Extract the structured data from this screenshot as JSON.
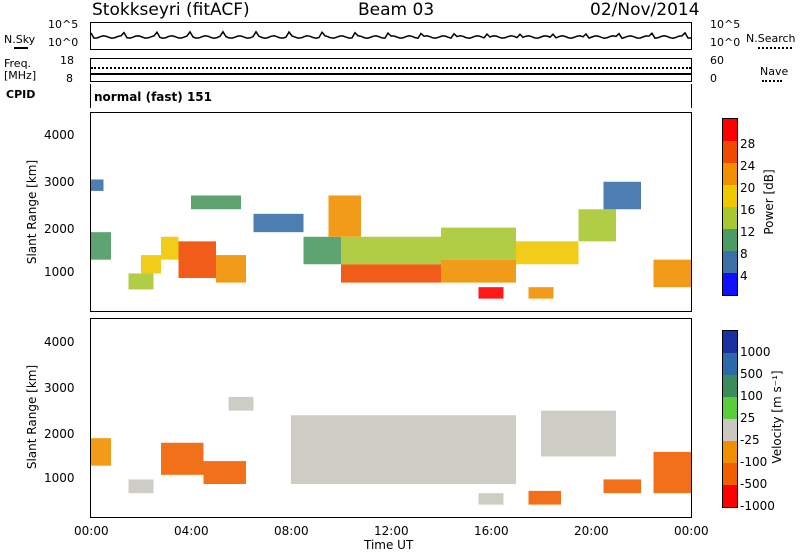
{
  "header": {
    "station": "Stokkseyri (fitACF)",
    "beam": "Beam 03",
    "date": "02/Nov/2014"
  },
  "noise_panel": {
    "left_label": "N.Sky",
    "right_label": "N.Search",
    "left_ticks": [
      "10^5",
      "10^0"
    ],
    "right_ticks": [
      "10^5",
      "10^0"
    ]
  },
  "freq_panel": {
    "left_label_1": "Freq.",
    "left_label_2": "[MHz]",
    "right_label": "Nave",
    "left_ticks": [
      "18",
      "8"
    ],
    "right_ticks": [
      "60",
      "0"
    ]
  },
  "cpid_panel": {
    "label": "CPID",
    "mode": "normal (fast) 151"
  },
  "power_panel": {
    "ylabel": "Slant Range [km]",
    "yticks": [
      "4000",
      "3000",
      "2000",
      "1000"
    ],
    "colorbar_label": "Power [dB]",
    "colorbar_ticks": [
      "28",
      "24",
      "20",
      "16",
      "12",
      "8",
      "4"
    ]
  },
  "velocity_panel": {
    "ylabel": "Slant Range [km]",
    "yticks": [
      "4000",
      "3000",
      "2000",
      "1000"
    ],
    "colorbar_label": "Velocity [m s⁻¹]",
    "colorbar_ticks": [
      "1000",
      "500",
      "100",
      "25",
      "-25",
      "-100",
      "-500",
      "-1000"
    ]
  },
  "xaxis": {
    "ticks": [
      "00:00",
      "04:00",
      "08:00",
      "12:00",
      "16:00",
      "20:00",
      "00:00"
    ],
    "label": "Time UT"
  },
  "colors": {
    "power_scale": [
      "#ff0000",
      "#f04a00",
      "#f09000",
      "#f0c800",
      "#a8c832",
      "#4c9a64",
      "#3a6fa8",
      "#1010ff"
    ],
    "velocity_scale": [
      "#1a2fa0",
      "#2a6aa8",
      "#3a8c5a",
      "#5acd3a",
      "#c8c8c0",
      "#f09000",
      "#f06000",
      "#ff0000"
    ]
  },
  "chart_data": {
    "type": "heatmap",
    "x_range_hours": [
      0,
      24
    ],
    "y_range_km": [
      180,
      4500
    ],
    "power": {
      "title": "Power [dB]",
      "clim": [
        0,
        30
      ],
      "regions": [
        {
          "t0": 0.0,
          "t1": 0.5,
          "r0": 2800,
          "r1": 3050,
          "level": 6
        },
        {
          "t0": 0.0,
          "t1": 0.8,
          "r0": 1300,
          "r1": 1900,
          "level": 8
        },
        {
          "t0": 1.5,
          "t1": 2.5,
          "r0": 650,
          "r1": 1000,
          "level": 14
        },
        {
          "t0": 2.0,
          "t1": 2.8,
          "r0": 1000,
          "r1": 1400,
          "level": 16
        },
        {
          "t0": 2.8,
          "t1": 3.5,
          "r0": 1300,
          "r1": 1800,
          "level": 18
        },
        {
          "t0": 3.5,
          "t1": 5.0,
          "r0": 900,
          "r1": 1700,
          "level": 24
        },
        {
          "t0": 5.0,
          "t1": 6.2,
          "r0": 800,
          "r1": 1400,
          "level": 20
        },
        {
          "t0": 4.0,
          "t1": 6.0,
          "r0": 2400,
          "r1": 2700,
          "level": 8
        },
        {
          "t0": 6.5,
          "t1": 8.5,
          "r0": 1900,
          "r1": 2300,
          "level": 6
        },
        {
          "t0": 8.5,
          "t1": 10.0,
          "r0": 1200,
          "r1": 1800,
          "level": 10
        },
        {
          "t0": 9.5,
          "t1": 10.8,
          "r0": 1800,
          "r1": 2700,
          "level": 22
        },
        {
          "t0": 10.0,
          "t1": 14.0,
          "r0": 800,
          "r1": 1200,
          "level": 26
        },
        {
          "t0": 10.0,
          "t1": 14.0,
          "r0": 1200,
          "r1": 1800,
          "level": 14
        },
        {
          "t0": 14.0,
          "t1": 17.0,
          "r0": 800,
          "r1": 1300,
          "level": 22
        },
        {
          "t0": 14.0,
          "t1": 17.0,
          "r0": 1300,
          "r1": 2000,
          "level": 12
        },
        {
          "t0": 15.5,
          "t1": 16.5,
          "r0": 450,
          "r1": 700,
          "level": 28
        },
        {
          "t0": 17.0,
          "t1": 19.5,
          "r0": 1200,
          "r1": 1700,
          "level": 16
        },
        {
          "t0": 17.5,
          "t1": 18.5,
          "r0": 450,
          "r1": 700,
          "level": 22
        },
        {
          "t0": 19.5,
          "t1": 21.0,
          "r0": 1700,
          "r1": 2400,
          "level": 12
        },
        {
          "t0": 20.5,
          "t1": 22.0,
          "r0": 2400,
          "r1": 3000,
          "level": 6
        },
        {
          "t0": 22.5,
          "t1": 24.0,
          "r0": 700,
          "r1": 1300,
          "level": 20
        }
      ]
    },
    "velocity": {
      "title": "Velocity [m s-1]",
      "clim": [
        -1000,
        1000
      ],
      "regions": [
        {
          "t0": 0.0,
          "t1": 0.8,
          "r0": 1300,
          "r1": 1900,
          "value": -50
        },
        {
          "t0": 1.5,
          "t1": 2.5,
          "r0": 700,
          "r1": 1000,
          "value": 0
        },
        {
          "t0": 2.8,
          "t1": 4.5,
          "r0": 1100,
          "r1": 1800,
          "value": -200
        },
        {
          "t0": 4.5,
          "t1": 6.2,
          "r0": 900,
          "r1": 1400,
          "value": -250
        },
        {
          "t0": 5.5,
          "t1": 6.5,
          "r0": 2500,
          "r1": 2800,
          "value": 0
        },
        {
          "t0": 8.0,
          "t1": 17.0,
          "r0": 900,
          "r1": 2400,
          "value": 0
        },
        {
          "t0": 15.5,
          "t1": 16.5,
          "r0": 450,
          "r1": 700,
          "value": 0
        },
        {
          "t0": 17.5,
          "t1": 18.8,
          "r0": 450,
          "r1": 750,
          "value": -300
        },
        {
          "t0": 18.0,
          "t1": 21.0,
          "r0": 1500,
          "r1": 2500,
          "value": 0
        },
        {
          "t0": 20.5,
          "t1": 22.0,
          "r0": 700,
          "r1": 1000,
          "value": -200
        },
        {
          "t0": 22.5,
          "t1": 24.0,
          "r0": 700,
          "r1": 1600,
          "value": -500
        }
      ]
    },
    "xlabel": "Time UT",
    "ylabel": "Slant Range [km]"
  }
}
